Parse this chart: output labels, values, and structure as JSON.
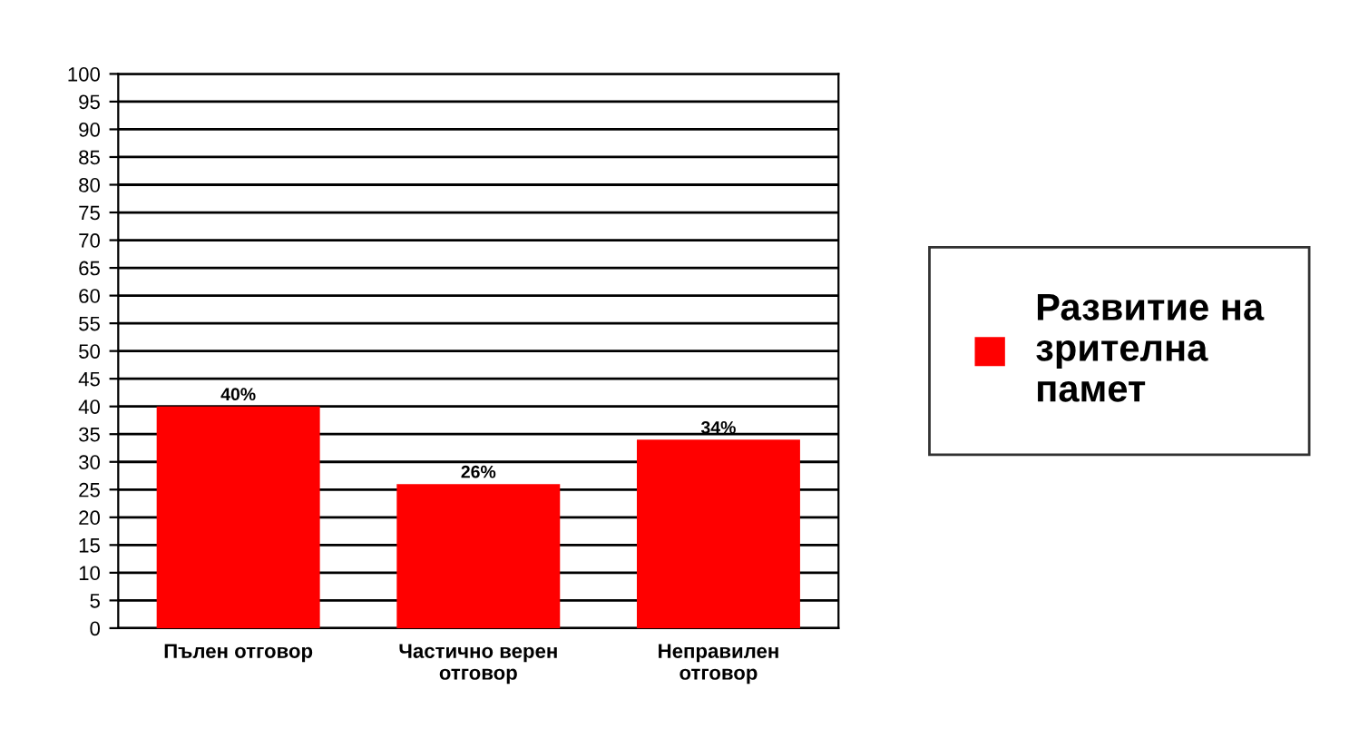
{
  "chart_data": {
    "type": "bar",
    "categories": [
      "Пълен отговор",
      "Частично верен\nотговор",
      "Неправилен\nотговор"
    ],
    "series": [
      {
        "name": "Развитие на\nзрителна\nпамет",
        "color": "#ff0000",
        "values": [
          40,
          26,
          34
        ],
        "value_labels": [
          "40%",
          "26%",
          "34%"
        ]
      }
    ],
    "ylim": [
      0,
      100
    ],
    "yticks": [
      0,
      5,
      10,
      15,
      20,
      25,
      30,
      35,
      40,
      45,
      50,
      55,
      60,
      65,
      70,
      75,
      80,
      85,
      90,
      95,
      100
    ],
    "grid": "y",
    "legend": "right"
  }
}
